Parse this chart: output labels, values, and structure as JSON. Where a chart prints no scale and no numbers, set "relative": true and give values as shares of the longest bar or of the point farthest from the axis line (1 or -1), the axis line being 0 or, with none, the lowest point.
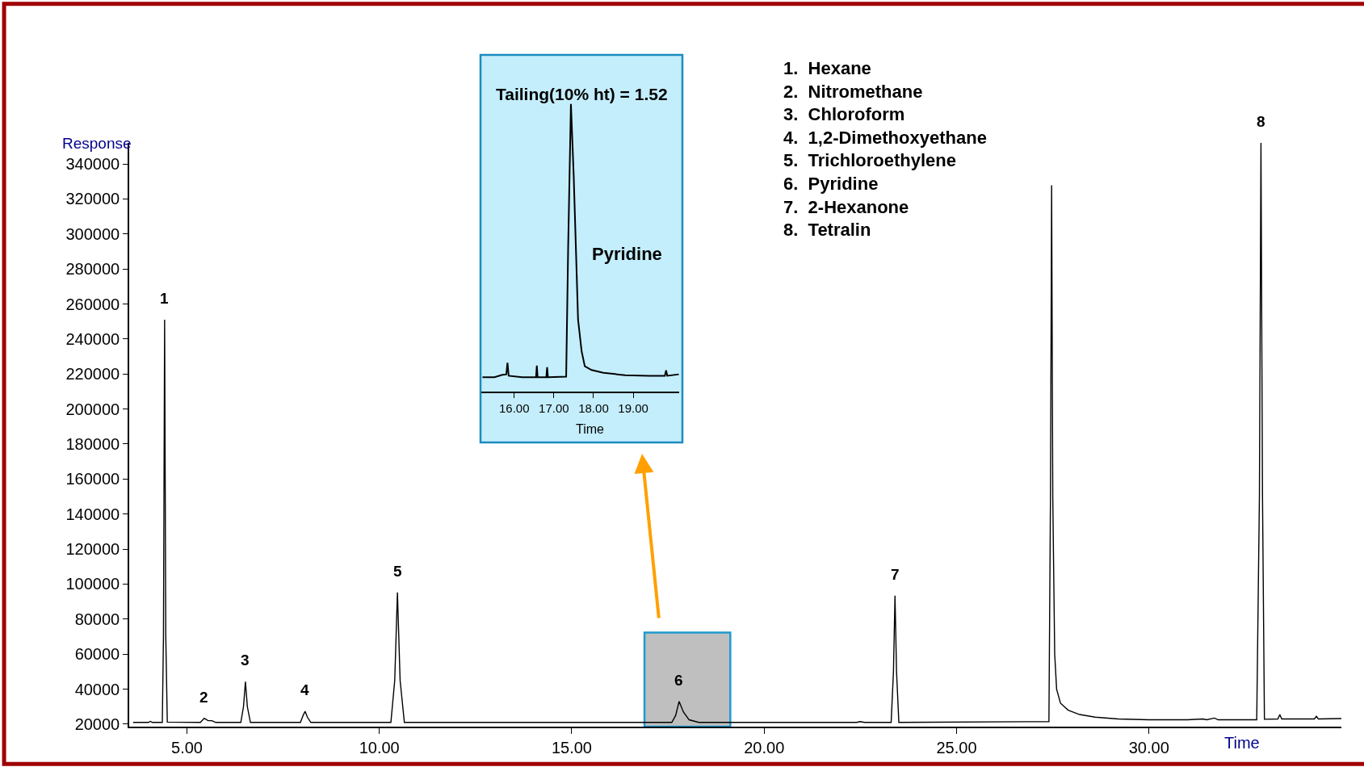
{
  "chart_data": [
    {
      "type": "line",
      "xlabel": "Time",
      "ylabel": "Response",
      "x": [
        3.6,
        4.0,
        4.05,
        4.1,
        4.36,
        4.39,
        4.42,
        4.45,
        4.49,
        5.35,
        5.45,
        5.55,
        5.65,
        5.75,
        6.4,
        6.47,
        6.52,
        6.57,
        6.65,
        7.95,
        8.02,
        8.07,
        8.13,
        8.22,
        10.3,
        10.4,
        10.47,
        10.54,
        10.65,
        17.6,
        17.7,
        17.79,
        17.9,
        18.05,
        18.3,
        22.4,
        22.5,
        22.6,
        23.3,
        23.36,
        23.4,
        23.44,
        23.5,
        27.4,
        27.44,
        27.47,
        27.5,
        27.55,
        27.6,
        27.7,
        27.9,
        28.2,
        28.6,
        29.2,
        30.0,
        31.0,
        31.4,
        31.5,
        31.7,
        31.8,
        32.8,
        32.87,
        32.91,
        32.95,
        33.0,
        33.35,
        33.4,
        33.45,
        34.3,
        34.35,
        34.4,
        35.0
      ],
      "series": [
        {
          "color": "#000000",
          "values": [
            21000,
            21000,
            21600,
            21000,
            21000,
            70000,
            251000,
            70000,
            21200,
            21000,
            23400,
            22000,
            22000,
            21000,
            21000,
            30000,
            44300,
            30000,
            21000,
            21000,
            25000,
            27400,
            24000,
            21000,
            21000,
            45000,
            95300,
            45000,
            21000,
            21000,
            25000,
            33000,
            27000,
            22500,
            21000,
            21000,
            21500,
            21000,
            21000,
            50000,
            93400,
            50000,
            21000,
            21500,
            150000,
            327800,
            150000,
            60000,
            40000,
            32000,
            28000,
            25500,
            24000,
            23000,
            22500,
            22500,
            23000,
            22500,
            23500,
            22500,
            22500,
            150000,
            352000,
            150000,
            22800,
            23000,
            25500,
            23000,
            23000,
            24500,
            23000,
            23200
          ]
        }
      ],
      "xlim": [
        3.5,
        35.0
      ],
      "ylim": [
        18600,
        352000
      ],
      "xticks": [
        {
          "value": 5,
          "label": "5.00"
        },
        {
          "value": 10,
          "label": "10.00"
        },
        {
          "value": 15,
          "label": "15.00"
        },
        {
          "value": 20,
          "label": "20.00"
        },
        {
          "value": 25,
          "label": "25.00"
        },
        {
          "value": 30,
          "label": "30.00"
        }
      ],
      "yticks": [
        20000,
        40000,
        60000,
        80000,
        100000,
        120000,
        140000,
        160000,
        180000,
        200000,
        220000,
        240000,
        260000,
        280000,
        300000,
        320000,
        340000
      ],
      "bands": [
        {
          "axis": "x",
          "from": 16.89,
          "to": 19.12,
          "color": "#bfbfbf"
        }
      ],
      "annotations": [
        {
          "text": "1",
          "x": 4.42,
          "y": 251000
        },
        {
          "text": "2",
          "x": 5.45,
          "y": 23400
        },
        {
          "text": "3",
          "x": 6.52,
          "y": 44300
        },
        {
          "text": "4",
          "x": 8.07,
          "y": 27400
        },
        {
          "text": "5",
          "x": 10.47,
          "y": 95300
        },
        {
          "text": "6",
          "x": 17.79,
          "y": 33000
        },
        {
          "text": "7",
          "x": 23.4,
          "y": 93400
        },
        {
          "text": "8",
          "x": 32.91,
          "y": 352000
        },
        "1.  Hexane\n2.  Nitromethane\n3.  Chloroform\n4.  1,2-Dimethoxyethane\n5.  Trichloroethylene\n6.  Pyridine\n7.  2-Hexanone\n8.  Tetralin"
      ],
      "grid": false,
      "marker": "none",
      "line_style": "solid"
    },
    {
      "type": "line",
      "title": "Tailing(10% ht) = 1.52",
      "xlabel": "Time",
      "relative": true,
      "tick_labels": "x",
      "x": [
        15.2,
        15.5,
        15.7,
        15.8,
        15.83,
        15.86,
        16.2,
        16.55,
        16.57,
        16.59,
        16.81,
        16.83,
        16.85,
        17.31,
        17.36,
        17.43,
        17.5,
        17.61,
        17.7,
        17.78,
        17.95,
        18.25,
        18.8,
        19.4,
        19.8,
        19.83,
        19.86,
        20.15
      ],
      "series": [
        {
          "color": "#000000",
          "values": [
            0.05,
            0.05,
            0.058,
            0.06,
            0.1,
            0.055,
            0.05,
            0.05,
            0.09,
            0.05,
            0.05,
            0.085,
            0.05,
            0.052,
            0.5,
            1.0,
            0.75,
            0.25,
            0.14,
            0.088,
            0.075,
            0.065,
            0.057,
            0.055,
            0.055,
            0.074,
            0.055,
            0.06
          ]
        }
      ],
      "xlim": [
        15.17,
        20.16
      ],
      "xticks": [
        {
          "value": 16,
          "label": "16.00"
        },
        {
          "value": 17,
          "label": "17.00"
        },
        {
          "value": 18,
          "label": "18.00"
        },
        {
          "value": 19,
          "label": "19.00"
        }
      ],
      "annotations": [
        "Pyridine"
      ],
      "grid": false,
      "marker": "none",
      "line_style": "solid"
    }
  ]
}
